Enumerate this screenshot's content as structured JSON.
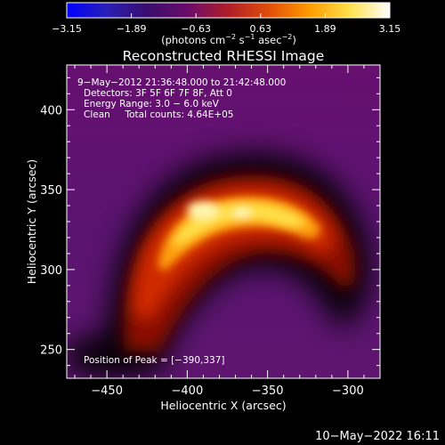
{
  "chart_data": {
    "type": "heatmap",
    "title": "Reconstructed RHESSI Image",
    "xlabel": "Heliocentric X (arcsec)",
    "ylabel": "Heliocentric Y (arcsec)",
    "xlim": [
      -475,
      -280
    ],
    "ylim": [
      232,
      428
    ],
    "x_ticks": [
      -450,
      -400,
      -350,
      -300
    ],
    "x_tick_labels": [
      "−450",
      "−400",
      "−350",
      "−300"
    ],
    "y_ticks": [
      250,
      300,
      350,
      400
    ],
    "y_tick_labels": [
      "250",
      "300",
      "350",
      "400"
    ],
    "annotation_lines": [
      "9−May−2012 21:36:48.000 to 21:42:48.000",
      "Detectors: 3F 5F 6F 7F 8F, Att 0",
      "Energy Range: 3.0 − 6.0 keV",
      "Clean     Total counts: 4.64E+05"
    ],
    "peak_text": "Position of Peak = [−390,337]",
    "peak_position": [
      -390,
      337
    ],
    "colorbar": {
      "range": [
        -3.15,
        3.15
      ],
      "ticks": [
        -3.15,
        -1.89,
        -0.63,
        0.63,
        1.89,
        3.15
      ],
      "tick_labels": [
        "−3.15",
        "−1.89",
        "−0.63",
        "0.63",
        "1.89",
        "3.15"
      ],
      "units_text": "(photons cm",
      "units_exp1": "−2",
      "units_mid": " s",
      "units_exp2": "−1",
      "units_mid2": " asec",
      "units_exp3": "−2",
      "units_end": ")",
      "stops": [
        "#0000ff",
        "#2a1fb4",
        "#3a0d6e",
        "#6a0b6a",
        "#b01e2a",
        "#e04d0a",
        "#ff9a00",
        "#ffe04a",
        "#ffffff"
      ]
    },
    "image_colors": {
      "background": "#5e1470",
      "dark": "#000000",
      "low": "#8a0c06",
      "mid": "#d02a00",
      "high": "#ffa010",
      "peak": "#fff6b0"
    }
  },
  "footer": {
    "date_text": "10−May−2022 16:11"
  }
}
